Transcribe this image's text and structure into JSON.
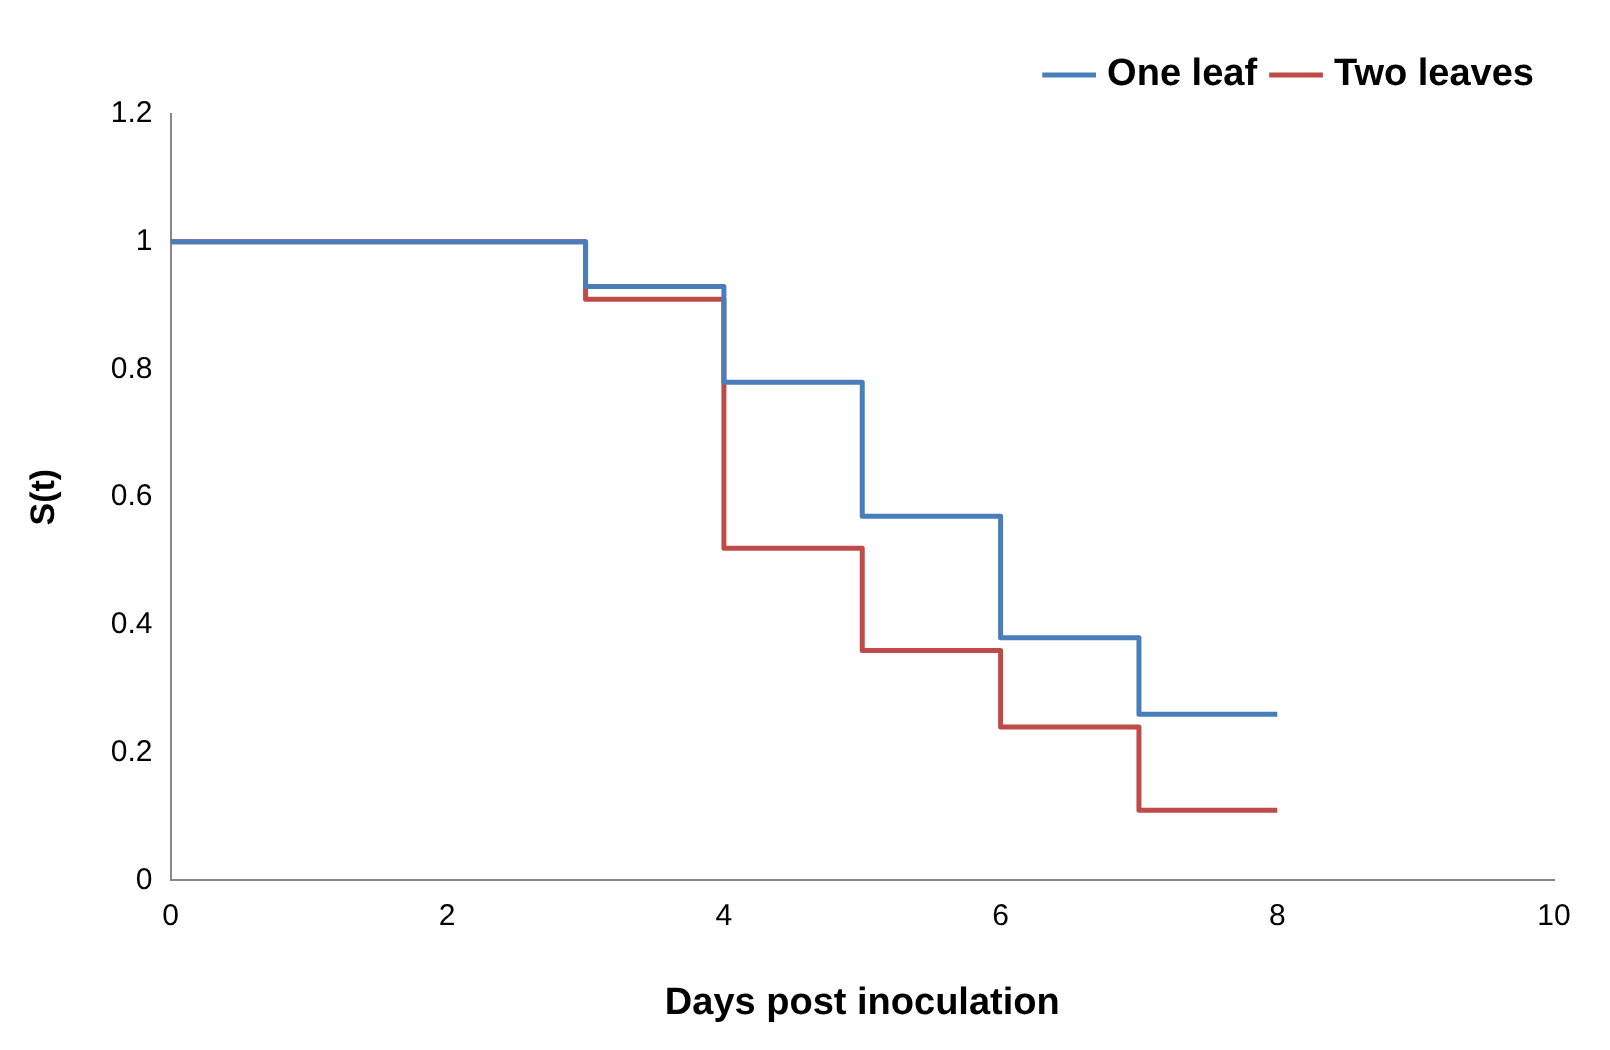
{
  "chart_data": {
    "type": "step",
    "xlabel": "Days post inoculation",
    "ylabel": "S(t)",
    "x": [
      0,
      3,
      4,
      5,
      6,
      7,
      8
    ],
    "series": [
      {
        "name": "One leaf",
        "color": "#4a7ebb",
        "values": [
          1,
          0.93,
          0.78,
          0.57,
          0.38,
          0.26,
          0.26
        ]
      },
      {
        "name": "Two leaves",
        "color": "#be4b48",
        "values": [
          1,
          0.91,
          0.52,
          0.36,
          0.24,
          0.11,
          0.11
        ]
      }
    ],
    "xlim": [
      0,
      10
    ],
    "xticks": [
      0,
      2,
      4,
      6,
      8,
      10
    ],
    "ylim": [
      0,
      1.2
    ],
    "yticks": [
      0,
      0.2,
      0.4,
      0.6,
      0.8,
      1,
      1.2
    ],
    "grid": false,
    "legend": "top right"
  }
}
